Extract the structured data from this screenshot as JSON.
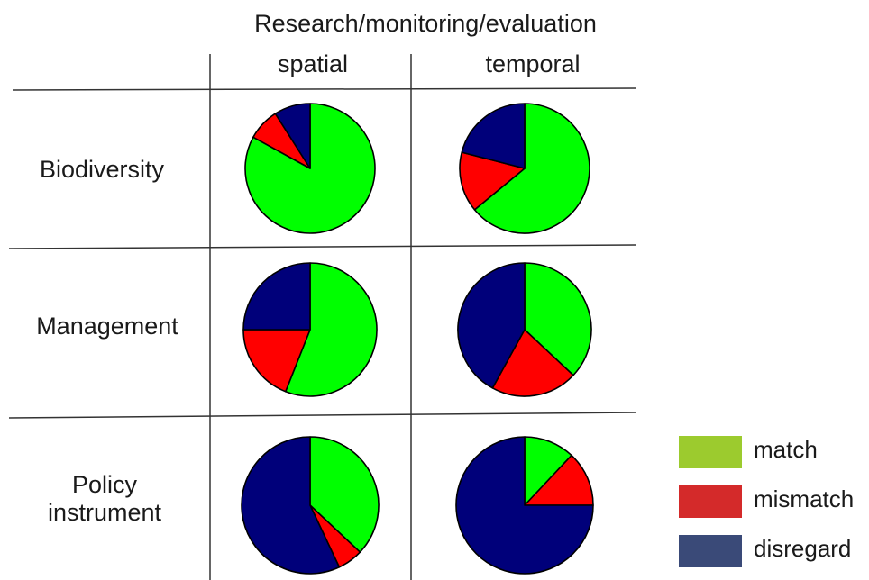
{
  "chart_data": {
    "type": "pie",
    "title": "Research/monitoring/evaluation",
    "columns": [
      "spatial",
      "temporal"
    ],
    "rows": [
      {
        "label_lines": [
          "Biodiversity"
        ]
      },
      {
        "label_lines": [
          "Management"
        ]
      },
      {
        "label_lines": [
          "Policy",
          "instrument"
        ]
      }
    ],
    "categories": [
      "match",
      "mismatch",
      "disregard"
    ],
    "legend": {
      "placement": "bottom-right",
      "entries": [
        {
          "name": "match",
          "color": "#9ccb2e"
        },
        {
          "name": "mismatch",
          "color": "#d42a2a"
        },
        {
          "name": "disregard",
          "color": "#3a4a78"
        }
      ]
    },
    "slice_colors": {
      "match": "#00ff00",
      "mismatch": "#ff0000",
      "disregard": "#00007a"
    },
    "pies": [
      {
        "row": "Biodiversity",
        "column": "spatial",
        "values": {
          "match": 83,
          "mismatch": 8,
          "disregard": 9
        }
      },
      {
        "row": "Biodiversity",
        "column": "temporal",
        "values": {
          "match": 64,
          "mismatch": 15,
          "disregard": 21
        }
      },
      {
        "row": "Management",
        "column": "spatial",
        "values": {
          "match": 56,
          "mismatch": 19,
          "disregard": 25
        }
      },
      {
        "row": "Management",
        "column": "temporal",
        "values": {
          "match": 37,
          "mismatch": 21,
          "disregard": 42
        }
      },
      {
        "row": "Policy instrument",
        "column": "spatial",
        "values": {
          "match": 37,
          "mismatch": 6,
          "disregard": 57
        }
      },
      {
        "row": "Policy instrument",
        "column": "temporal",
        "values": {
          "match": 12,
          "mismatch": 13,
          "disregard": 75
        }
      }
    ]
  }
}
